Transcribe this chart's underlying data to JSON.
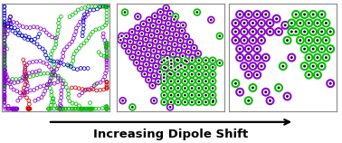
{
  "fig_width": 3.78,
  "fig_height": 1.58,
  "dpi": 100,
  "panel_border_color": "#888888",
  "arrow_text": "Increasing Dipole Shift",
  "arrow_text_fontsize": 9.5,
  "arrow_text_fontweight": "bold",
  "colors": {
    "purple": "#8B00D0",
    "green": "#00BB00",
    "blue": "#0000CC",
    "red": "#CC0000"
  }
}
